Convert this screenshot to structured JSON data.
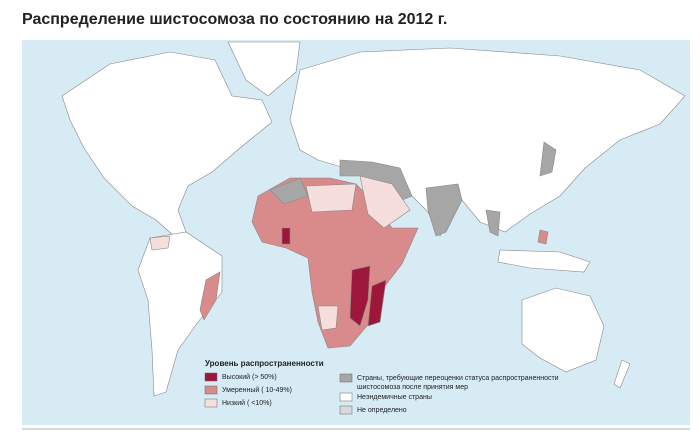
{
  "title": "Распределение шистосомоза по состоянию на 2012 г.",
  "legend": {
    "title": "Уровень распространенности",
    "items": [
      {
        "lines": [
          "Высокий (> 50%)"
        ],
        "color": "#9c1739"
      },
      {
        "lines": [
          "Умеренный ( 10-49%)"
        ],
        "color": "#d98a8a"
      },
      {
        "lines": [
          "Низкий ( <10%)"
        ],
        "color": "#f5dedb"
      },
      {
        "lines": [
          "Страны, требующие переоценки статуса распространенности",
          "шистосомоза после принятия мер"
        ],
        "color": "#a6a6a6"
      },
      {
        "lines": [
          "Неэндемичные страны"
        ],
        "color": "#ffffff"
      },
      {
        "lines": [
          "Не определено"
        ],
        "color": "#d9d9d9"
      }
    ]
  }
}
